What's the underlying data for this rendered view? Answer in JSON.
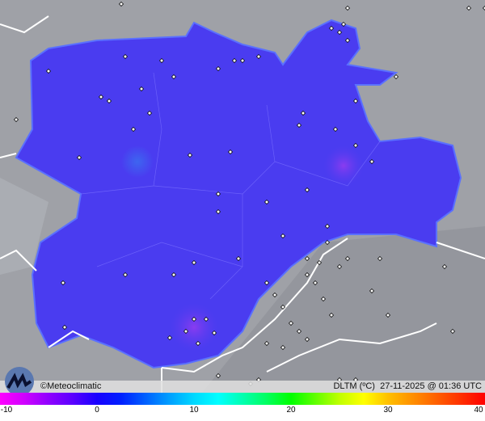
{
  "credit": "©Meteoclimatic",
  "variable": "DLTM",
  "unit": "(ºC)",
  "timestamp": "27-11-2025 @ 01:36 UTC",
  "colorbar": {
    "ticks": [
      "-10",
      "0",
      "10",
      "20",
      "30",
      "40"
    ],
    "min": -10,
    "max": 40,
    "colors": [
      "#ff00ff",
      "#d000ff",
      "#9000ff",
      "#5a00ff",
      "#1800ff",
      "#0020ff",
      "#0060ff",
      "#00a0ff",
      "#00d8ff",
      "#00ffff",
      "#00ffb0",
      "#00ff60",
      "#00ff00",
      "#60ff00",
      "#c0ff00",
      "#ffff00",
      "#ffc000",
      "#ff9000",
      "#ff6000",
      "#ff3000",
      "#ff0000"
    ]
  },
  "map": {
    "land_color": "#9a9ca2",
    "region_color": "#4a3cf0",
    "border_color": "#ffffff",
    "station_marker": "diamond"
  }
}
